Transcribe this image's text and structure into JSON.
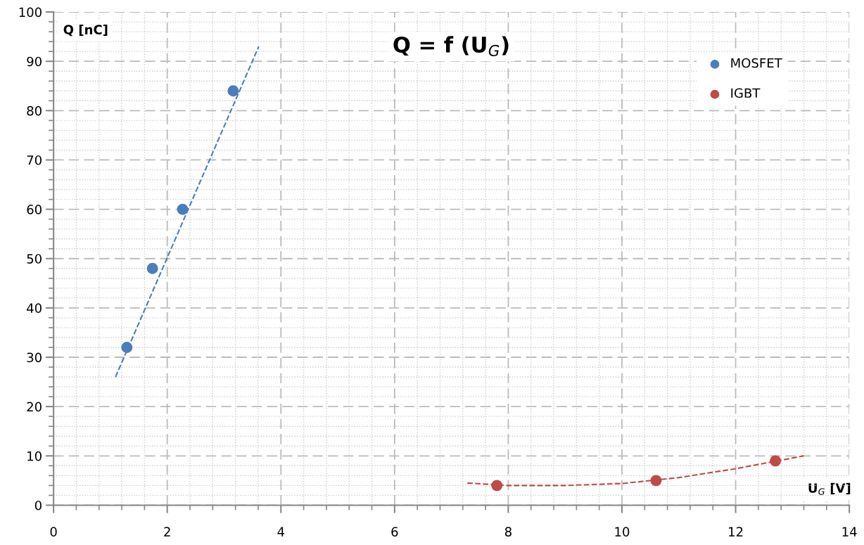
{
  "chart_data": {
    "type": "scatter",
    "title": "Q = f (U$_{G}$)",
    "xlabel": "U$_{G}$ [V]",
    "ylabel": "Q [nC]",
    "xlim": [
      0,
      14
    ],
    "ylim": [
      0,
      100
    ],
    "xticks": [
      0,
      2,
      4,
      6,
      8,
      10,
      12,
      14
    ],
    "yticks": [
      0,
      10,
      20,
      30,
      40,
      50,
      60,
      70,
      80,
      90,
      100
    ],
    "grid": true,
    "legend": "top right",
    "marker": "circle",
    "series": [
      {
        "name": "MOSFET",
        "color": "#4a7ebb",
        "x": [
          1.29,
          1.74,
          2.27,
          3.16
        ],
        "values": [
          32,
          48,
          60,
          84
        ]
      },
      {
        "name": "IGBT",
        "color": "#be4b48",
        "x": [
          7.8,
          10.6,
          12.7
        ],
        "values": [
          4,
          5,
          9
        ]
      },
      {
        "type": "line",
        "color": "#4a7ebb",
        "line_style": "dashed",
        "marker": "none",
        "x": [
          1.09,
          3.61
        ],
        "values": [
          26,
          93
        ]
      },
      {
        "type": "line",
        "color": "#be4b48",
        "line_style": "dashed",
        "marker": "none",
        "x": [
          7.28,
          8,
          9,
          10,
          11,
          12,
          13.2
        ],
        "values": [
          4.5,
          4,
          4,
          4.4,
          5.6,
          7.4,
          10
        ]
      }
    ]
  }
}
